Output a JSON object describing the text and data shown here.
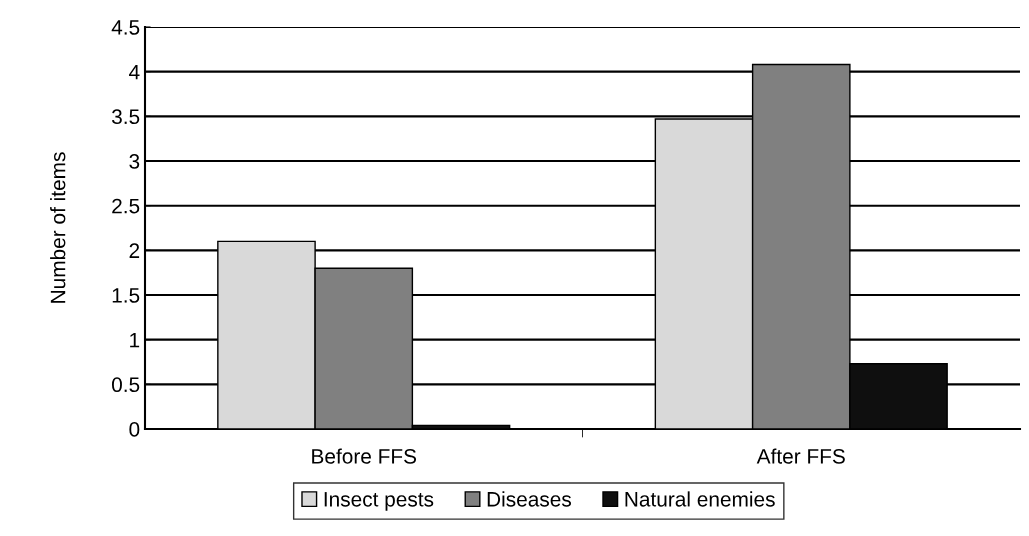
{
  "chart_data": {
    "type": "bar",
    "ylabel": "Number of items",
    "categories": [
      "Before FFS",
      "After FFS"
    ],
    "series": [
      {
        "name": "Insect pests",
        "color": "#d9d9d9",
        "values": [
          2.1,
          3.47
        ]
      },
      {
        "name": "Diseases",
        "color": "#808080",
        "values": [
          1.8,
          4.08
        ]
      },
      {
        "name": "Natural enemies",
        "color": "#0f0f0f",
        "values": [
          0.04,
          0.73
        ]
      }
    ],
    "ylim": [
      0,
      4.5
    ],
    "yticks": [
      0,
      0.5,
      1,
      1.5,
      2,
      2.5,
      3,
      3.5,
      4,
      4.5
    ],
    "grid": "y",
    "legend": "bottom"
  }
}
